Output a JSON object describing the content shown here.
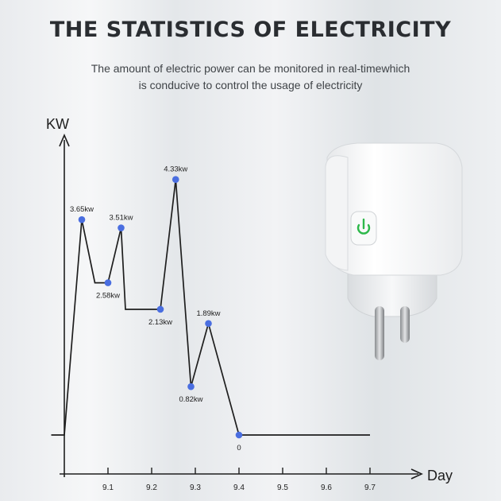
{
  "header": {
    "title": "THE STATISTICS OF ELECTRICITY",
    "subtitle_line1": "The amount of electric power can be monitored in real-timewhich",
    "subtitle_line2": "is conducive to control the usage of electricity"
  },
  "chart_data": {
    "type": "line",
    "ylabel": "KW",
    "xlabel": "Day",
    "x_ticks": [
      "9.1",
      "9.2",
      "9.3",
      "9.4",
      "9.5",
      "9.6",
      "9.7"
    ],
    "xlim": [
      9.0,
      9.75
    ],
    "ylim": [
      0,
      5.1
    ],
    "grid": false,
    "line_color": "#1e1e1e",
    "marker_color": "#4a6ee0",
    "series": [
      {
        "x": [
          8.97,
          9.0,
          9.04,
          9.07,
          9.1,
          9.13,
          9.14,
          9.2,
          9.22,
          9.255,
          9.29,
          9.33,
          9.4,
          9.48,
          9.7
        ],
        "y": [
          0,
          0,
          3.65,
          2.58,
          2.58,
          3.51,
          2.13,
          2.13,
          2.13,
          4.33,
          0.82,
          1.89,
          0,
          0,
          0
        ],
        "labeled_points": [
          {
            "x": 9.04,
            "y": 3.65,
            "label": "3.65kw",
            "pos": "above"
          },
          {
            "x": 9.1,
            "y": 2.58,
            "label": "2.58kw",
            "pos": "below"
          },
          {
            "x": 9.13,
            "y": 3.51,
            "label": "3.51kw",
            "pos": "above"
          },
          {
            "x": 9.22,
            "y": 2.13,
            "label": "2.13kw",
            "pos": "below"
          },
          {
            "x": 9.255,
            "y": 4.33,
            "label": "4.33kw",
            "pos": "above"
          },
          {
            "x": 9.29,
            "y": 0.82,
            "label": "0.82kw",
            "pos": "below"
          },
          {
            "x": 9.33,
            "y": 1.89,
            "label": "1.89kw",
            "pos": "above"
          },
          {
            "x": 9.4,
            "y": 0,
            "label": "0",
            "pos": "below"
          }
        ]
      }
    ]
  },
  "product": {
    "icon": "power-icon",
    "accent": "#2db84a"
  }
}
